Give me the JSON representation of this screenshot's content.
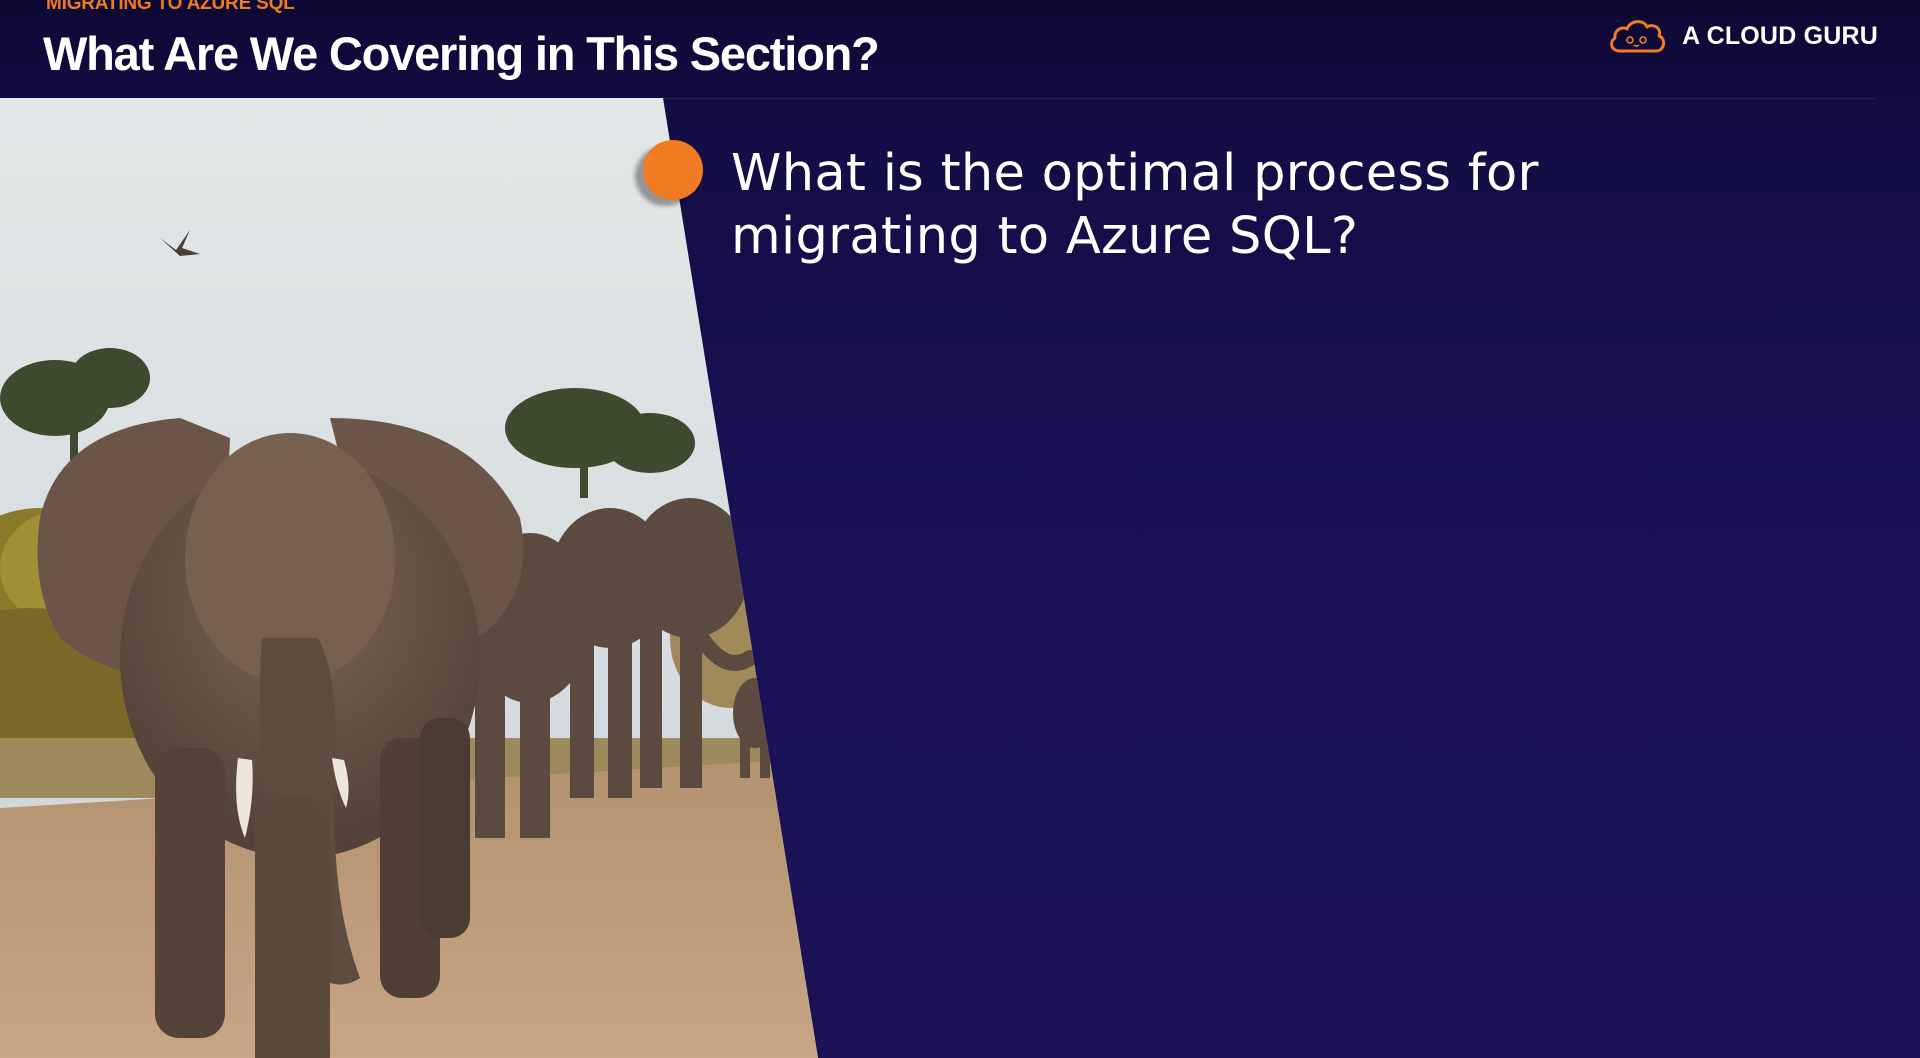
{
  "header": {
    "eyebrow": "MIGRATING TO AZURE SQL",
    "title": "What Are We Covering in This Section?"
  },
  "brand": {
    "name": "A CLOUD GURU",
    "logo_icon": "cloud-logo-icon",
    "accent_color": "#f07b22"
  },
  "photo": {
    "icon": "elephant-herd-photo"
  },
  "bullets": [
    {
      "text": "What is the optimal process for migrating to Azure SQL?"
    }
  ],
  "colors": {
    "background": "#1a1158",
    "header": "#0d0833",
    "accent": "#f07b22",
    "text": "#ffffff"
  }
}
